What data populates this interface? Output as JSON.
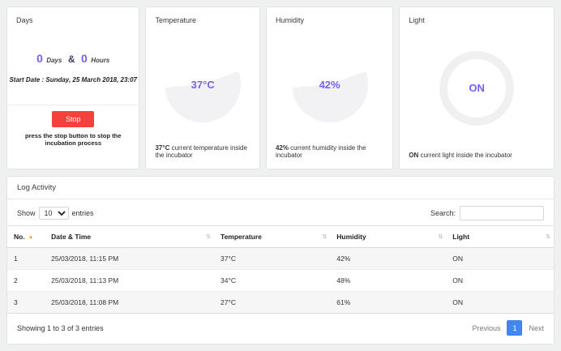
{
  "days_card": {
    "title": "Days",
    "days_value": "0",
    "days_unit": "Days",
    "ampersand": "&",
    "hours_value": "0",
    "hours_unit": "Hours",
    "start_date": "Start Date : Sunday, 25 March 2018, 23:07",
    "stop_button": "Stop",
    "caption": "press the stop button to stop the incubation process"
  },
  "gauges": [
    {
      "title": "Temperature",
      "value": "37°C",
      "caption_value": "37°C",
      "caption_text": " current temperature inside the incubator"
    },
    {
      "title": "Humidity",
      "value": "42%",
      "caption_value": "42%",
      "caption_text": " current humidity inside the incubator"
    },
    {
      "title": "Light",
      "value": "ON",
      "caption_value": "ON",
      "caption_text": " current light inside the incubator"
    }
  ],
  "log": {
    "title": "Log Activity",
    "show_label": "Show",
    "entries_value": "10",
    "entries_label": "entries",
    "search_label": "Search:",
    "headers": [
      {
        "label": "No."
      },
      {
        "label": "Date & Time"
      },
      {
        "label": "Temperature"
      },
      {
        "label": "Humidity"
      },
      {
        "label": "Light"
      }
    ],
    "rows": [
      {
        "no": "1",
        "datetime": "25/03/2018, 11:15 PM",
        "temperature": "37°C",
        "humidity": "42%",
        "light": "ON"
      },
      {
        "no": "2",
        "datetime": "25/03/2018, 11:13 PM",
        "temperature": "34°C",
        "humidity": "48%",
        "light": "ON"
      },
      {
        "no": "3",
        "datetime": "25/03/2018, 11:08 PM",
        "temperature": "27°C",
        "humidity": "61%",
        "light": "ON"
      }
    ],
    "info": "Showing 1 to 3 of 3 entries",
    "pagination": {
      "previous": "Previous",
      "current": "1",
      "next": "Next"
    }
  },
  "icons": {
    "sort_asc": "▲",
    "sort_both": "⇅"
  },
  "colors": {
    "accent_purple": "#7460ee",
    "stop_red": "#f3413e",
    "page_active_blue": "#4285f4",
    "sort_active_orange": "#dfa800"
  }
}
